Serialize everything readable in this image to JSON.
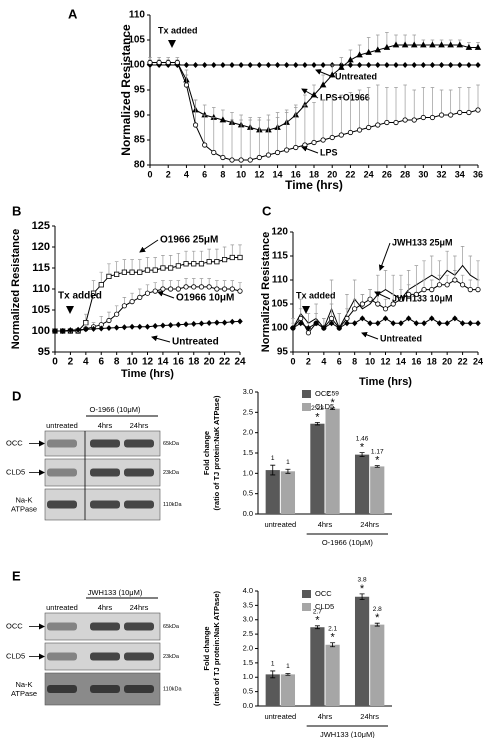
{
  "chart_data": [
    {
      "type": "line",
      "panel_label": "A",
      "xlabel": "Time (hrs)",
      "ylabel": "Normalized Resistance",
      "annotation": "Tx added",
      "x": [
        0,
        1,
        2,
        3,
        4,
        5,
        6,
        7,
        8,
        9,
        10,
        11,
        12,
        13,
        14,
        15,
        16,
        17,
        18,
        19,
        20,
        21,
        22,
        23,
        24,
        25,
        26,
        27,
        28,
        29,
        30,
        31,
        32,
        33,
        34,
        35,
        36
      ],
      "xlim": [
        0,
        36
      ],
      "xticks": [
        0,
        2,
        4,
        6,
        8,
        10,
        12,
        14,
        16,
        18,
        20,
        22,
        24,
        26,
        28,
        30,
        32,
        34,
        36
      ],
      "ylim": [
        80,
        110
      ],
      "yticks": [
        80,
        85,
        90,
        95,
        100,
        105,
        110
      ],
      "series": [
        {
          "name": "Untreated",
          "color": "#000000",
          "marker": "diamond",
          "values": [
            100,
            100,
            100,
            100,
            100,
            100,
            100,
            100,
            100,
            100,
            100,
            100,
            100,
            100,
            100,
            100,
            100,
            100,
            100,
            100,
            100,
            100,
            100,
            100,
            100,
            100,
            100,
            100,
            100,
            100,
            100,
            100,
            100,
            100,
            100,
            100,
            100
          ]
        },
        {
          "name": "LPS+O1966",
          "color": "#000000",
          "marker": "triangle",
          "values": [
            100.5,
            100.5,
            100.5,
            100.5,
            97,
            91,
            90,
            89.5,
            89,
            88.5,
            88,
            87.5,
            87,
            87,
            87.5,
            88.5,
            90,
            92,
            94,
            96,
            98,
            99.5,
            101,
            102,
            102.5,
            103,
            103.5,
            104,
            104,
            104,
            104,
            104,
            104,
            104,
            104,
            103.5,
            103.5
          ],
          "errors": [
            0.5,
            0.5,
            0.5,
            0.5,
            1,
            2,
            2,
            2,
            2,
            2,
            2,
            2,
            2,
            2,
            2,
            2,
            2,
            2,
            2,
            2,
            2,
            2,
            2,
            2,
            3,
            3,
            3,
            2,
            2,
            2,
            1,
            1,
            1,
            1,
            1,
            1,
            1
          ]
        },
        {
          "name": "LPS",
          "color": "#000000",
          "marker": "circle-open",
          "values": [
            100.5,
            100.5,
            100.5,
            100.5,
            96,
            88,
            84,
            82.5,
            81.5,
            81,
            81,
            81,
            81.5,
            82,
            82.5,
            83,
            83.5,
            84,
            84.5,
            85,
            85.5,
            86,
            86.5,
            87,
            87.5,
            88,
            88.5,
            88.5,
            89,
            89,
            89.5,
            89.5,
            90,
            90,
            90.5,
            90.5,
            91
          ],
          "errors": [
            1,
            1,
            1,
            1,
            3,
            5,
            6,
            7,
            7,
            8,
            8,
            8,
            8,
            8,
            8,
            8,
            8,
            8,
            8,
            8,
            8,
            8,
            8,
            8,
            8,
            8,
            7,
            7,
            7,
            6,
            6,
            6,
            5,
            5,
            5,
            5,
            5
          ]
        }
      ]
    },
    {
      "type": "line",
      "panel_label": "B",
      "xlabel": "Time (hrs)",
      "ylabel": "Normalized Resistance",
      "annotation": "Tx added",
      "x": [
        0,
        1,
        2,
        3,
        4,
        5,
        6,
        7,
        8,
        9,
        10,
        11,
        12,
        13,
        14,
        15,
        16,
        17,
        18,
        19,
        20,
        21,
        22,
        23,
        24
      ],
      "xlim": [
        0,
        24
      ],
      "xticks": [
        0,
        2,
        4,
        6,
        8,
        10,
        12,
        14,
        16,
        18,
        20,
        22,
        24
      ],
      "ylim": [
        95,
        125
      ],
      "yticks": [
        95,
        100,
        105,
        110,
        115,
        120,
        125
      ],
      "series": [
        {
          "name": "O1966 25μM",
          "color": "#000000",
          "marker": "square-open",
          "values": [
            100,
            100,
            100,
            100,
            102,
            109,
            111,
            113,
            113.5,
            114,
            114,
            114,
            114.5,
            114.5,
            115,
            115,
            115.5,
            116,
            116,
            116,
            116.5,
            116.5,
            117,
            117.5,
            117.5
          ],
          "errors": [
            0.5,
            0.5,
            0.5,
            0.5,
            2,
            3,
            3,
            3,
            3,
            3,
            3,
            3,
            3,
            3,
            3,
            3,
            3,
            3,
            3,
            3,
            3,
            3,
            3,
            3,
            3
          ]
        },
        {
          "name": "O1966 10μM",
          "color": "#000000",
          "marker": "circle-open",
          "values": [
            100,
            100,
            100,
            100,
            100.5,
            101,
            101.5,
            102.5,
            104,
            106,
            107,
            108,
            109,
            109.5,
            110,
            110,
            110,
            110.5,
            110.5,
            110.5,
            110.5,
            110,
            110,
            110,
            109.5
          ],
          "errors": [
            0.5,
            0.5,
            0.5,
            0.5,
            1,
            1,
            2,
            2,
            2,
            2,
            2,
            2,
            2,
            2,
            2,
            2,
            2,
            2,
            2,
            2,
            2,
            2,
            2,
            2,
            2
          ]
        },
        {
          "name": "Untreated",
          "color": "#000000",
          "marker": "diamond",
          "values": [
            100,
            100,
            100.2,
            100.3,
            100.4,
            100.5,
            100.6,
            100.7,
            100.8,
            100.9,
            101,
            101,
            101,
            101.2,
            101.3,
            101.4,
            101.5,
            101.6,
            101.7,
            101.8,
            101.9,
            102,
            102,
            102.2,
            102.3
          ]
        }
      ]
    },
    {
      "type": "line",
      "panel_label": "C",
      "xlabel": "Time (hrs)",
      "ylabel": "Normalized Resistance",
      "annotation": "Tx added",
      "x": [
        0,
        1,
        2,
        3,
        4,
        5,
        6,
        7,
        8,
        9,
        10,
        11,
        12,
        13,
        14,
        15,
        16,
        17,
        18,
        19,
        20,
        21,
        22,
        23,
        24
      ],
      "xlim": [
        0,
        24
      ],
      "xticks": [
        0,
        2,
        4,
        6,
        8,
        10,
        12,
        14,
        16,
        18,
        20,
        22,
        24
      ],
      "ylim": [
        95,
        120
      ],
      "yticks": [
        95,
        100,
        105,
        110,
        115,
        120
      ],
      "series": [
        {
          "name": "JWH133 25μM",
          "color": "#000000",
          "marker": "none",
          "values": [
            100,
            103,
            101,
            102,
            100,
            104,
            100,
            103,
            106,
            104,
            105,
            107,
            108,
            107,
            106,
            108,
            109,
            110,
            111,
            110,
            112,
            111,
            113,
            111,
            110
          ],
          "errors": [
            2,
            3,
            2,
            3,
            2,
            6,
            3,
            4,
            4,
            3,
            3,
            4,
            4,
            4,
            5,
            4,
            4,
            4,
            4,
            4,
            4,
            4,
            4,
            4,
            4
          ]
        },
        {
          "name": "JWH133 10μM",
          "color": "#000000",
          "marker": "circle-open",
          "values": [
            100,
            102,
            99,
            101,
            100,
            102,
            100,
            102,
            104,
            105,
            106,
            105,
            104,
            105,
            106,
            107,
            107,
            108,
            108,
            109,
            109,
            110,
            109,
            108,
            108
          ],
          "errors": [
            1,
            2,
            2,
            2,
            2,
            3,
            3,
            2,
            2,
            2,
            2,
            2,
            2,
            2,
            2,
            2,
            2,
            2,
            2,
            2,
            2,
            2,
            2,
            2,
            2
          ]
        },
        {
          "name": "Untreated",
          "color": "#000000",
          "marker": "diamond",
          "values": [
            100,
            101,
            100,
            101,
            100,
            101,
            100,
            101,
            101,
            102,
            101,
            101,
            102,
            101,
            101,
            102,
            101,
            101,
            102,
            101,
            101,
            102,
            101,
            101,
            101
          ]
        }
      ]
    },
    {
      "type": "bar",
      "panel_label": "D",
      "ylabel": [
        "Fold change",
        "(ratio of TJ protein:NaK ATPase)"
      ],
      "group_label": "O-1966 (10μM)",
      "significance_marker": "*",
      "categories": [
        "untreated",
        "4hrs",
        "24hrs"
      ],
      "ylim": [
        0,
        3
      ],
      "yticks": [
        {
          "value": 0,
          "label": "0.0"
        },
        0.5,
        {
          "value": 1,
          "label": "1.0"
        },
        1.5,
        {
          "value": 2,
          "label": "2.0"
        },
        2.5,
        {
          "value": 3,
          "label": "3.0"
        }
      ],
      "series": [
        {
          "name": "OCC",
          "color": "#595959",
          "values": [
            1.08,
            2.22,
            1.46
          ],
          "value_labels": [
            "1",
            "2.22",
            "1.46"
          ],
          "errors": [
            0.12,
            0.03,
            0.05
          ],
          "significant": [
            false,
            true,
            true
          ]
        },
        {
          "name": "CLD5",
          "color": "#a6a6a6",
          "values": [
            1.05,
            2.59,
            1.17
          ],
          "value_labels": [
            "1",
            "2.59",
            "1.17"
          ],
          "errors": [
            0.05,
            0.02,
            0.02
          ],
          "significant": [
            false,
            true,
            true
          ]
        }
      ]
    },
    {
      "type": "bar",
      "panel_label": "E",
      "ylabel": [
        "Fold change",
        "(ratio of TJ protein:NaK ATPase)"
      ],
      "group_label": "JWH133 (10μM)",
      "significance_marker": "*",
      "categories": [
        "untreated",
        "4hrs",
        "24hrs"
      ],
      "ylim": [
        0,
        4
      ],
      "yticks": [
        {
          "value": 0,
          "label": "0.0"
        },
        0.5,
        {
          "value": 1,
          "label": "1.0"
        },
        1.5,
        {
          "value": 2,
          "label": "2.0"
        },
        2.5,
        {
          "value": 3,
          "label": "3.0"
        },
        3.5,
        {
          "value": 4,
          "label": "4.0"
        }
      ],
      "series": [
        {
          "name": "OCC",
          "color": "#595959",
          "values": [
            1.1,
            2.74,
            3.8
          ],
          "value_labels": [
            "1",
            "2.7",
            "3.8"
          ],
          "errors": [
            0.12,
            0.05,
            0.1
          ],
          "significant": [
            false,
            true,
            true
          ]
        },
        {
          "name": "CLD5",
          "color": "#a6a6a6",
          "values": [
            1.1,
            2.13,
            2.83
          ],
          "value_labels": [
            "1",
            "2.1",
            "2.8"
          ],
          "errors": [
            0.03,
            0.07,
            0.05
          ],
          "significant": [
            false,
            true,
            true
          ]
        }
      ]
    }
  ],
  "blots": [
    {
      "header": "O-1966 (10μM)",
      "lanes": [
        "untreated",
        "4hrs",
        "24hrs"
      ],
      "rows": [
        {
          "label": [
            "OCC"
          ],
          "size": "65kDa"
        },
        {
          "label": [
            "CLD5"
          ],
          "size": "23kDa"
        },
        {
          "label": [
            "Na-K",
            "ATPase"
          ],
          "size": "110kDa"
        }
      ]
    },
    {
      "header": "JWH133 (10μM)",
      "lanes": [
        "untreated",
        "4hrs",
        "24hrs"
      ],
      "rows": [
        {
          "label": [
            "OCC"
          ],
          "size": "65kDa"
        },
        {
          "label": [
            "CLD5"
          ],
          "size": "23kDa"
        },
        {
          "label": [
            "Na-K",
            "ATPase"
          ],
          "size": "110kDa"
        }
      ]
    }
  ]
}
